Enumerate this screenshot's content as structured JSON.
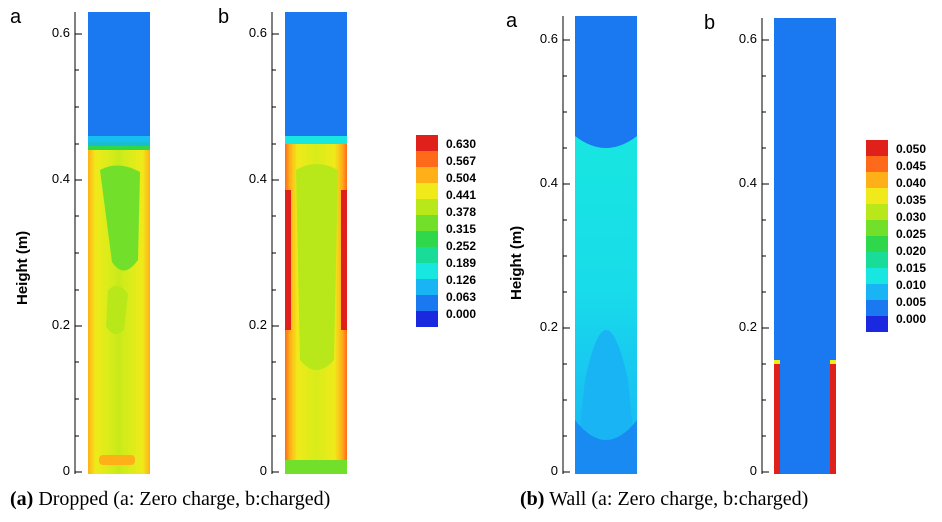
{
  "figure": {
    "left": {
      "caption_tag": "(a)",
      "caption_text": "Dropped (a: Zero charge, b:charged)",
      "ylabel": "Height (m)",
      "panels": [
        {
          "letter": "a"
        },
        {
          "letter": "b"
        }
      ],
      "yticks": [
        "0.6",
        "0.4",
        "0.2",
        "0"
      ],
      "legend": [
        "0.630",
        "0.567",
        "0.504",
        "0.441",
        "0.378",
        "0.315",
        "0.252",
        "0.189",
        "0.126",
        "0.063",
        "0.000"
      ]
    },
    "right": {
      "caption_tag": "(b)",
      "caption_text": "Wall (a: Zero charge, b:charged)",
      "ylabel": "Height (m)",
      "panels": [
        {
          "letter": "a"
        },
        {
          "letter": "b"
        }
      ],
      "yticks": [
        "0.6",
        "0.4",
        "0.2",
        "0"
      ],
      "legend": [
        "0.050",
        "0.045",
        "0.040",
        "0.035",
        "0.030",
        "0.025",
        "0.020",
        "0.015",
        "0.010",
        "0.005",
        "0.000"
      ]
    },
    "colors": {
      "scale": [
        "#e0201a",
        "#ff6a1a",
        "#ffb018",
        "#f0ea1a",
        "#b8e81a",
        "#72e02a",
        "#2ed84a",
        "#18dc98",
        "#18e6e0",
        "#18b4f4",
        "#1a78f0",
        "#1a28e0"
      ],
      "background_blue": "#1a78f0"
    }
  }
}
